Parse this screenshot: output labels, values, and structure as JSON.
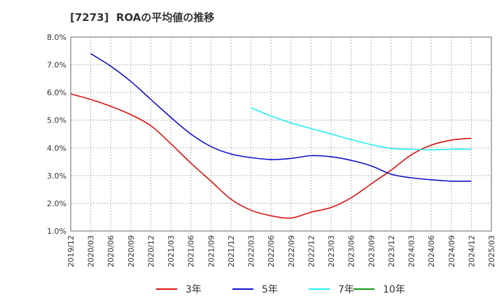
{
  "chart_data": {
    "type": "line",
    "title": "[7273]  ROAの平均値の推移",
    "xlabel": "",
    "ylabel": "",
    "ylim": [
      1.0,
      8.0
    ],
    "y_ticks": [
      "1.0%",
      "2.0%",
      "3.0%",
      "4.0%",
      "5.0%",
      "6.0%",
      "7.0%",
      "8.0%"
    ],
    "x_ticks": [
      "2019/12",
      "2020/03",
      "2020/06",
      "2020/09",
      "2020/12",
      "2021/03",
      "2021/06",
      "2021/09",
      "2021/12",
      "2022/03",
      "2022/06",
      "2022/09",
      "2022/12",
      "2023/03",
      "2023/06",
      "2023/09",
      "2023/12",
      "2024/03",
      "2024/06",
      "2024/09",
      "2024/12",
      "2025/03"
    ],
    "grid": true,
    "legend_position": "bottom",
    "series": [
      {
        "name": "3年",
        "color": "#dd1111",
        "start_index": 0,
        "values": [
          5.95,
          5.75,
          5.5,
          5.2,
          4.8,
          4.15,
          3.45,
          2.8,
          2.15,
          1.75,
          1.55,
          1.47,
          1.68,
          1.85,
          2.2,
          2.7,
          3.2,
          3.75,
          4.1,
          4.28,
          4.35
        ]
      },
      {
        "name": "5年",
        "color": "#1111cc",
        "start_index": 1,
        "values": [
          7.4,
          6.95,
          6.4,
          5.75,
          5.1,
          4.5,
          4.05,
          3.78,
          3.65,
          3.58,
          3.62,
          3.72,
          3.68,
          3.55,
          3.35,
          3.05,
          2.92,
          2.85,
          2.8,
          2.8
        ]
      },
      {
        "name": "7年",
        "color": "#22eeee",
        "start_index": 9,
        "values": [
          5.45,
          5.15,
          4.9,
          4.7,
          4.5,
          4.3,
          4.12,
          3.98,
          3.95,
          3.93,
          3.95,
          3.95
        ]
      },
      {
        "name": "10年",
        "color": "#119911",
        "start_index": 0,
        "values": []
      }
    ]
  }
}
